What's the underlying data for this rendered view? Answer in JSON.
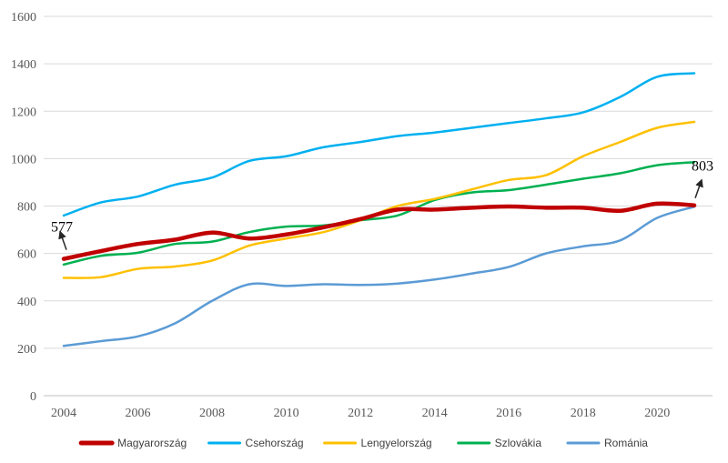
{
  "chart_data": {
    "type": "line",
    "x": [
      2004,
      2005,
      2006,
      2007,
      2008,
      2009,
      2010,
      2011,
      2012,
      2013,
      2014,
      2015,
      2016,
      2017,
      2018,
      2019,
      2020,
      2021
    ],
    "x_ticks": [
      2004,
      2006,
      2008,
      2010,
      2012,
      2014,
      2016,
      2018,
      2020
    ],
    "y_ticks": [
      0,
      200,
      400,
      600,
      800,
      1000,
      1200,
      1400,
      1600
    ],
    "xlim": [
      2004,
      2021
    ],
    "ylim": [
      0,
      1600
    ],
    "grid": true,
    "legend_position": "bottom",
    "series": [
      {
        "name": "Magyarország",
        "color": "#c00000",
        "width": 4.5,
        "values": [
          577,
          610,
          640,
          658,
          688,
          663,
          680,
          710,
          745,
          785,
          785,
          793,
          798,
          793,
          793,
          780,
          810,
          803
        ]
      },
      {
        "name": "Csehország",
        "color": "#00b0f0",
        "width": 2.5,
        "values": [
          760,
          815,
          840,
          890,
          920,
          990,
          1010,
          1048,
          1070,
          1095,
          1110,
          1130,
          1150,
          1170,
          1195,
          1260,
          1345,
          1360
        ]
      },
      {
        "name": "Lengyelország",
        "color": "#ffc000",
        "width": 2.5,
        "values": [
          497,
          500,
          535,
          545,
          570,
          633,
          663,
          690,
          740,
          800,
          830,
          870,
          910,
          930,
          1010,
          1070,
          1130,
          1155
        ]
      },
      {
        "name": "Szlovákia",
        "color": "#00b050",
        "width": 2.5,
        "values": [
          553,
          590,
          603,
          640,
          650,
          690,
          713,
          718,
          740,
          760,
          825,
          857,
          867,
          890,
          915,
          938,
          972,
          985
        ]
      },
      {
        "name": "Románia",
        "color": "#5b9bd5",
        "width": 2.5,
        "values": [
          210,
          230,
          250,
          305,
          400,
          470,
          463,
          470,
          467,
          473,
          490,
          515,
          543,
          600,
          630,
          655,
          750,
          797
        ]
      }
    ],
    "annotations": [
      {
        "label": "577",
        "series": "Magyarország",
        "x": 2004,
        "y": 577
      },
      {
        "label": "803",
        "series": "Magyarország",
        "x": 2021,
        "y": 803
      }
    ],
    "title": "",
    "xlabel": "",
    "ylabel": ""
  }
}
